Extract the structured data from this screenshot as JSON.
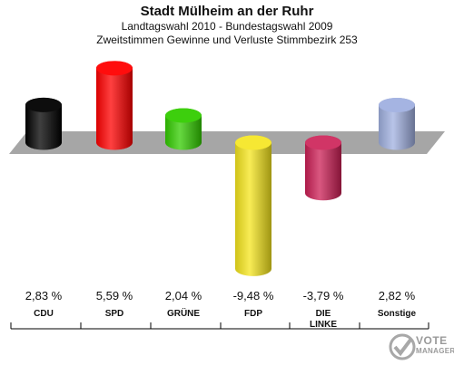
{
  "header": {
    "title": "Stadt Mülheim an der Ruhr",
    "subtitle1": "Landtagswahl 2010 - Bundestagswahl 2009",
    "subtitle2": "Zweitstimmen Gewinne und Verluste Stimmbezirk 253"
  },
  "chart_data": {
    "type": "bar",
    "title": "Stadt Mülheim an der Ruhr",
    "subtitle": "Landtagswahl 2010 - Bundestagswahl 2009 / Zweitstimmen Gewinne und Verluste Stimmbezirk 253",
    "categories": [
      "CDU",
      "SPD",
      "GRÜNE",
      "FDP",
      "DIE\nLINKE",
      "Sonstige"
    ],
    "values": [
      2.83,
      5.59,
      2.04,
      -9.48,
      -3.79,
      2.82
    ],
    "value_labels": [
      "2,83 %",
      "5,59 %",
      "2,04 %",
      "-9,48 %",
      "-3,79 %",
      "2,82 %"
    ],
    "colors": [
      "#000000",
      "#ff0000",
      "#33cc00",
      "#f5e51c",
      "#cc1f55",
      "#a0b0e0"
    ],
    "unit": "%",
    "ylim": [
      -9.48,
      5.59
    ],
    "grid": false,
    "legend": "none"
  },
  "logo": {
    "line1": "VOTE",
    "line2": "MANAGER",
    "icon": "vote-check-icon"
  }
}
